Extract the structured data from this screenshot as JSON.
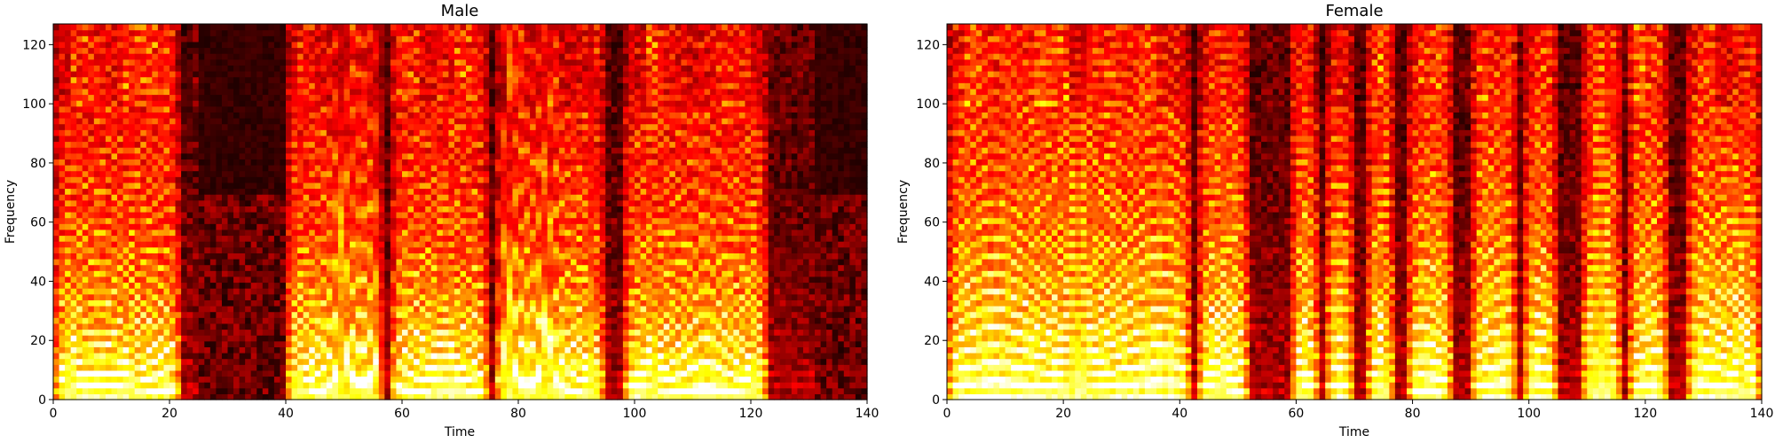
{
  "chart_data": [
    {
      "type": "heatmap",
      "title": "Male",
      "xlabel": "Time",
      "ylabel": "Frequency",
      "xlim": [
        0,
        140
      ],
      "ylim": [
        0,
        127
      ],
      "xticks": [
        "0",
        "20",
        "40",
        "60",
        "80",
        "100",
        "120",
        "140"
      ],
      "yticks": [
        "0",
        "20",
        "40",
        "60",
        "80",
        "100",
        "120"
      ],
      "colormap": "hot",
      "grid": false,
      "voiced_segments": [
        [
          0,
          22
        ],
        [
          40,
          57
        ],
        [
          58,
          75
        ],
        [
          76,
          95
        ],
        [
          98,
          123
        ]
      ],
      "silent_segments": [
        [
          25,
          40
        ],
        [
          131,
          140
        ]
      ]
    },
    {
      "type": "heatmap",
      "title": "Female",
      "xlabel": "Time",
      "ylabel": "Frequency",
      "xlim": [
        0,
        140
      ],
      "ylim": [
        0,
        127
      ],
      "xticks": [
        "0",
        "20",
        "40",
        "60",
        "80",
        "100",
        "120",
        "140"
      ],
      "yticks": [
        "0",
        "20",
        "40",
        "60",
        "80",
        "100",
        "120"
      ],
      "colormap": "hot",
      "grid": false,
      "voiced_segments": [
        [
          0,
          42
        ],
        [
          43,
          52
        ],
        [
          59,
          64
        ],
        [
          65,
          70
        ],
        [
          72,
          77
        ],
        [
          79,
          87
        ],
        [
          90,
          98
        ],
        [
          99,
          105
        ],
        [
          109,
          116
        ],
        [
          117,
          124
        ],
        [
          127,
          140
        ]
      ],
      "silent_segments": []
    }
  ]
}
